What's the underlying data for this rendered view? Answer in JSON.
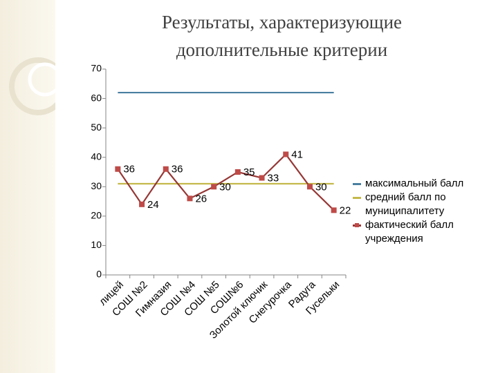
{
  "chart_data": {
    "type": "line",
    "title": "Результаты, характеризующие дополнительные критерии",
    "categories": [
      "лицей",
      "СОШ №2",
      "Гимназия",
      "СОШ №4",
      "СОШ №5",
      "СОШ№6",
      "Золотой ключик",
      "Снегурочка",
      "Радуга",
      "Гусельки"
    ],
    "series": [
      {
        "name": "максимальный балл",
        "color": "#4a7fa0",
        "values": [
          62,
          62,
          62,
          62,
          62,
          62,
          62,
          62,
          62,
          62
        ]
      },
      {
        "name": "средний балл по муниципалитету",
        "color": "#c4b94a",
        "values": [
          31,
          31,
          31,
          31,
          31,
          31,
          31,
          31,
          31,
          31
        ]
      },
      {
        "name": "фактический балл учреждения",
        "color": "#953735",
        "marker_color": "#be4b48",
        "values": [
          36,
          24,
          36,
          26,
          30,
          35,
          33,
          41,
          30,
          22
        ],
        "data_labels": true
      }
    ],
    "ylim": [
      0,
      70
    ],
    "yticks": [
      0,
      10,
      20,
      30,
      40,
      50,
      60,
      70
    ],
    "grid": false
  }
}
